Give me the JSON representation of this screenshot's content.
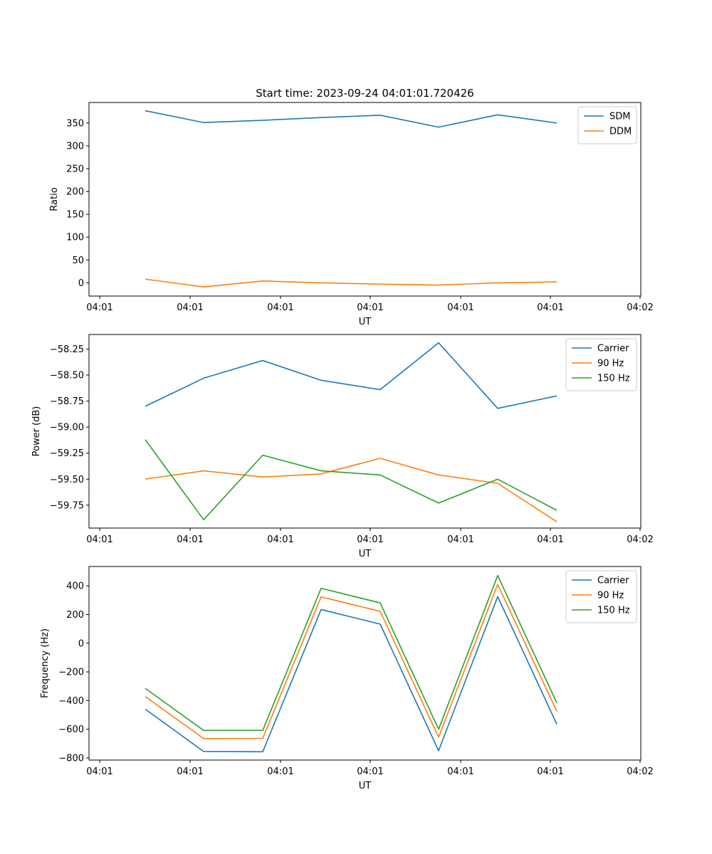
{
  "chart_data": [
    {
      "type": "line",
      "title": "Start time: 2023-09-24 04:01:01.720426",
      "xlabel": "UT",
      "ylabel": "Ratio",
      "x_tick_labels": [
        "04:01",
        "04:01",
        "04:01",
        "04:01",
        "04:01",
        "04:01",
        "04:02"
      ],
      "ylim": [
        -29,
        395
      ],
      "yticks": [
        0,
        50,
        100,
        150,
        200,
        250,
        300,
        350
      ],
      "legend_position": "top-right",
      "x": [
        1,
        2,
        3,
        4,
        5,
        6,
        7,
        8
      ],
      "series": [
        {
          "name": "SDM",
          "color": "#1f77b4",
          "values": [
            377,
            351,
            356,
            362,
            367,
            341,
            368,
            350
          ]
        },
        {
          "name": "DDM",
          "color": "#ff7f0e",
          "values": [
            8,
            -9,
            4,
            0,
            -3,
            -5,
            0,
            2
          ]
        }
      ]
    },
    {
      "type": "line",
      "title": "",
      "xlabel": "UT",
      "ylabel": "Power (dB)",
      "x_tick_labels": [
        "04:01",
        "04:01",
        "04:01",
        "04:01",
        "04:01",
        "04:01",
        "04:02"
      ],
      "ylim": [
        -59.97,
        -58.11
      ],
      "yticks": [
        -59.75,
        -59.5,
        -59.25,
        -59.0,
        -58.75,
        -58.5,
        -58.25
      ],
      "ytick_labels": [
        "−59.75",
        "−59.50",
        "−59.25",
        "−59.00",
        "−58.75",
        "−58.50",
        "−58.25"
      ],
      "legend_position": "top-right",
      "x": [
        1,
        2,
        3,
        4,
        5,
        6,
        7,
        8
      ],
      "series": [
        {
          "name": "Carrier",
          "color": "#1f77b4",
          "values": [
            -58.8,
            -58.53,
            -58.36,
            -58.55,
            -58.64,
            -58.19,
            -58.82,
            -58.7
          ]
        },
        {
          "name": "90 Hz",
          "color": "#ff7f0e",
          "values": [
            -59.5,
            -59.42,
            -59.48,
            -59.45,
            -59.3,
            -59.46,
            -59.54,
            -59.91
          ]
        },
        {
          "name": "150 Hz",
          "color": "#2ca02c",
          "values": [
            -59.12,
            -59.89,
            -59.27,
            -59.42,
            -59.46,
            -59.73,
            -59.5,
            -59.8
          ]
        }
      ]
    },
    {
      "type": "line",
      "title": "",
      "xlabel": "UT",
      "ylabel": "Frequency (Hz)",
      "x_tick_labels": [
        "04:01",
        "04:01",
        "04:01",
        "04:01",
        "04:01",
        "04:01",
        "04:02"
      ],
      "ylim": [
        -815,
        535
      ],
      "yticks": [
        -800,
        -600,
        -400,
        -200,
        0,
        200,
        400
      ],
      "ytick_labels": [
        "−800",
        "−600",
        "−400",
        "−200",
        "0",
        "200",
        "400"
      ],
      "legend_position": "top-right",
      "x": [
        1,
        2,
        3,
        4,
        5,
        6,
        7,
        8
      ],
      "series": [
        {
          "name": "Carrier",
          "color": "#1f77b4",
          "values": [
            -460,
            -755,
            -757,
            235,
            133,
            -750,
            325,
            -565
          ]
        },
        {
          "name": "90 Hz",
          "color": "#ff7f0e",
          "values": [
            -372,
            -665,
            -664,
            323,
            222,
            -655,
            410,
            -475
          ]
        },
        {
          "name": "150 Hz",
          "color": "#2ca02c",
          "values": [
            -315,
            -608,
            -608,
            383,
            281,
            -600,
            472,
            -416
          ]
        }
      ]
    }
  ]
}
